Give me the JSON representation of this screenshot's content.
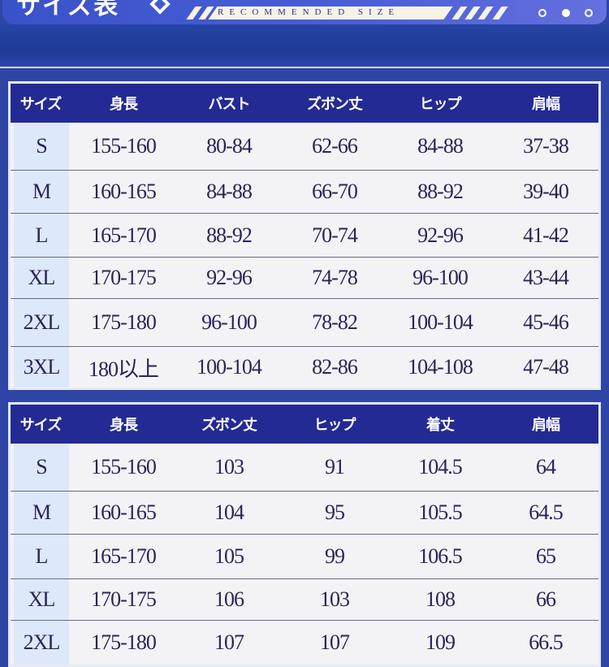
{
  "banner": {
    "title": "サイズ表",
    "subtitle": "RECOMMENDED SIZE"
  },
  "tables": [
    {
      "headers": [
        "サイズ",
        "身長",
        "バスト",
        "ズボン丈",
        "ヒップ",
        "肩幅"
      ],
      "rows": [
        [
          "S",
          "155-160",
          "80-84",
          "62-66",
          "84-88",
          "37-38"
        ],
        [
          "M",
          "160-165",
          "84-88",
          "66-70",
          "88-92",
          "39-40"
        ],
        [
          "L",
          "165-170",
          "88-92",
          "70-74",
          "92-96",
          "41-42"
        ],
        [
          "XL",
          "170-175",
          "92-96",
          "74-78",
          "96-100",
          "43-44"
        ],
        [
          "2XL",
          "175-180",
          "96-100",
          "78-82",
          "100-104",
          "45-46"
        ],
        [
          "3XL",
          "180以上",
          "100-104",
          "82-86",
          "104-108",
          "47-48"
        ]
      ]
    },
    {
      "headers": [
        "サイズ",
        "身長",
        "ズボン丈",
        "ヒップ",
        "着丈",
        "肩幅"
      ],
      "rows": [
        [
          "S",
          "155-160",
          "103",
          "91",
          "104.5",
          "64"
        ],
        [
          "M",
          "160-165",
          "104",
          "95",
          "105.5",
          "64.5"
        ],
        [
          "L",
          "165-170",
          "105",
          "99",
          "106.5",
          "65"
        ],
        [
          "XL",
          "170-175",
          "106",
          "103",
          "108",
          "66"
        ],
        [
          "2XL",
          "175-180",
          "107",
          "107",
          "109",
          "66.5"
        ]
      ]
    }
  ]
}
